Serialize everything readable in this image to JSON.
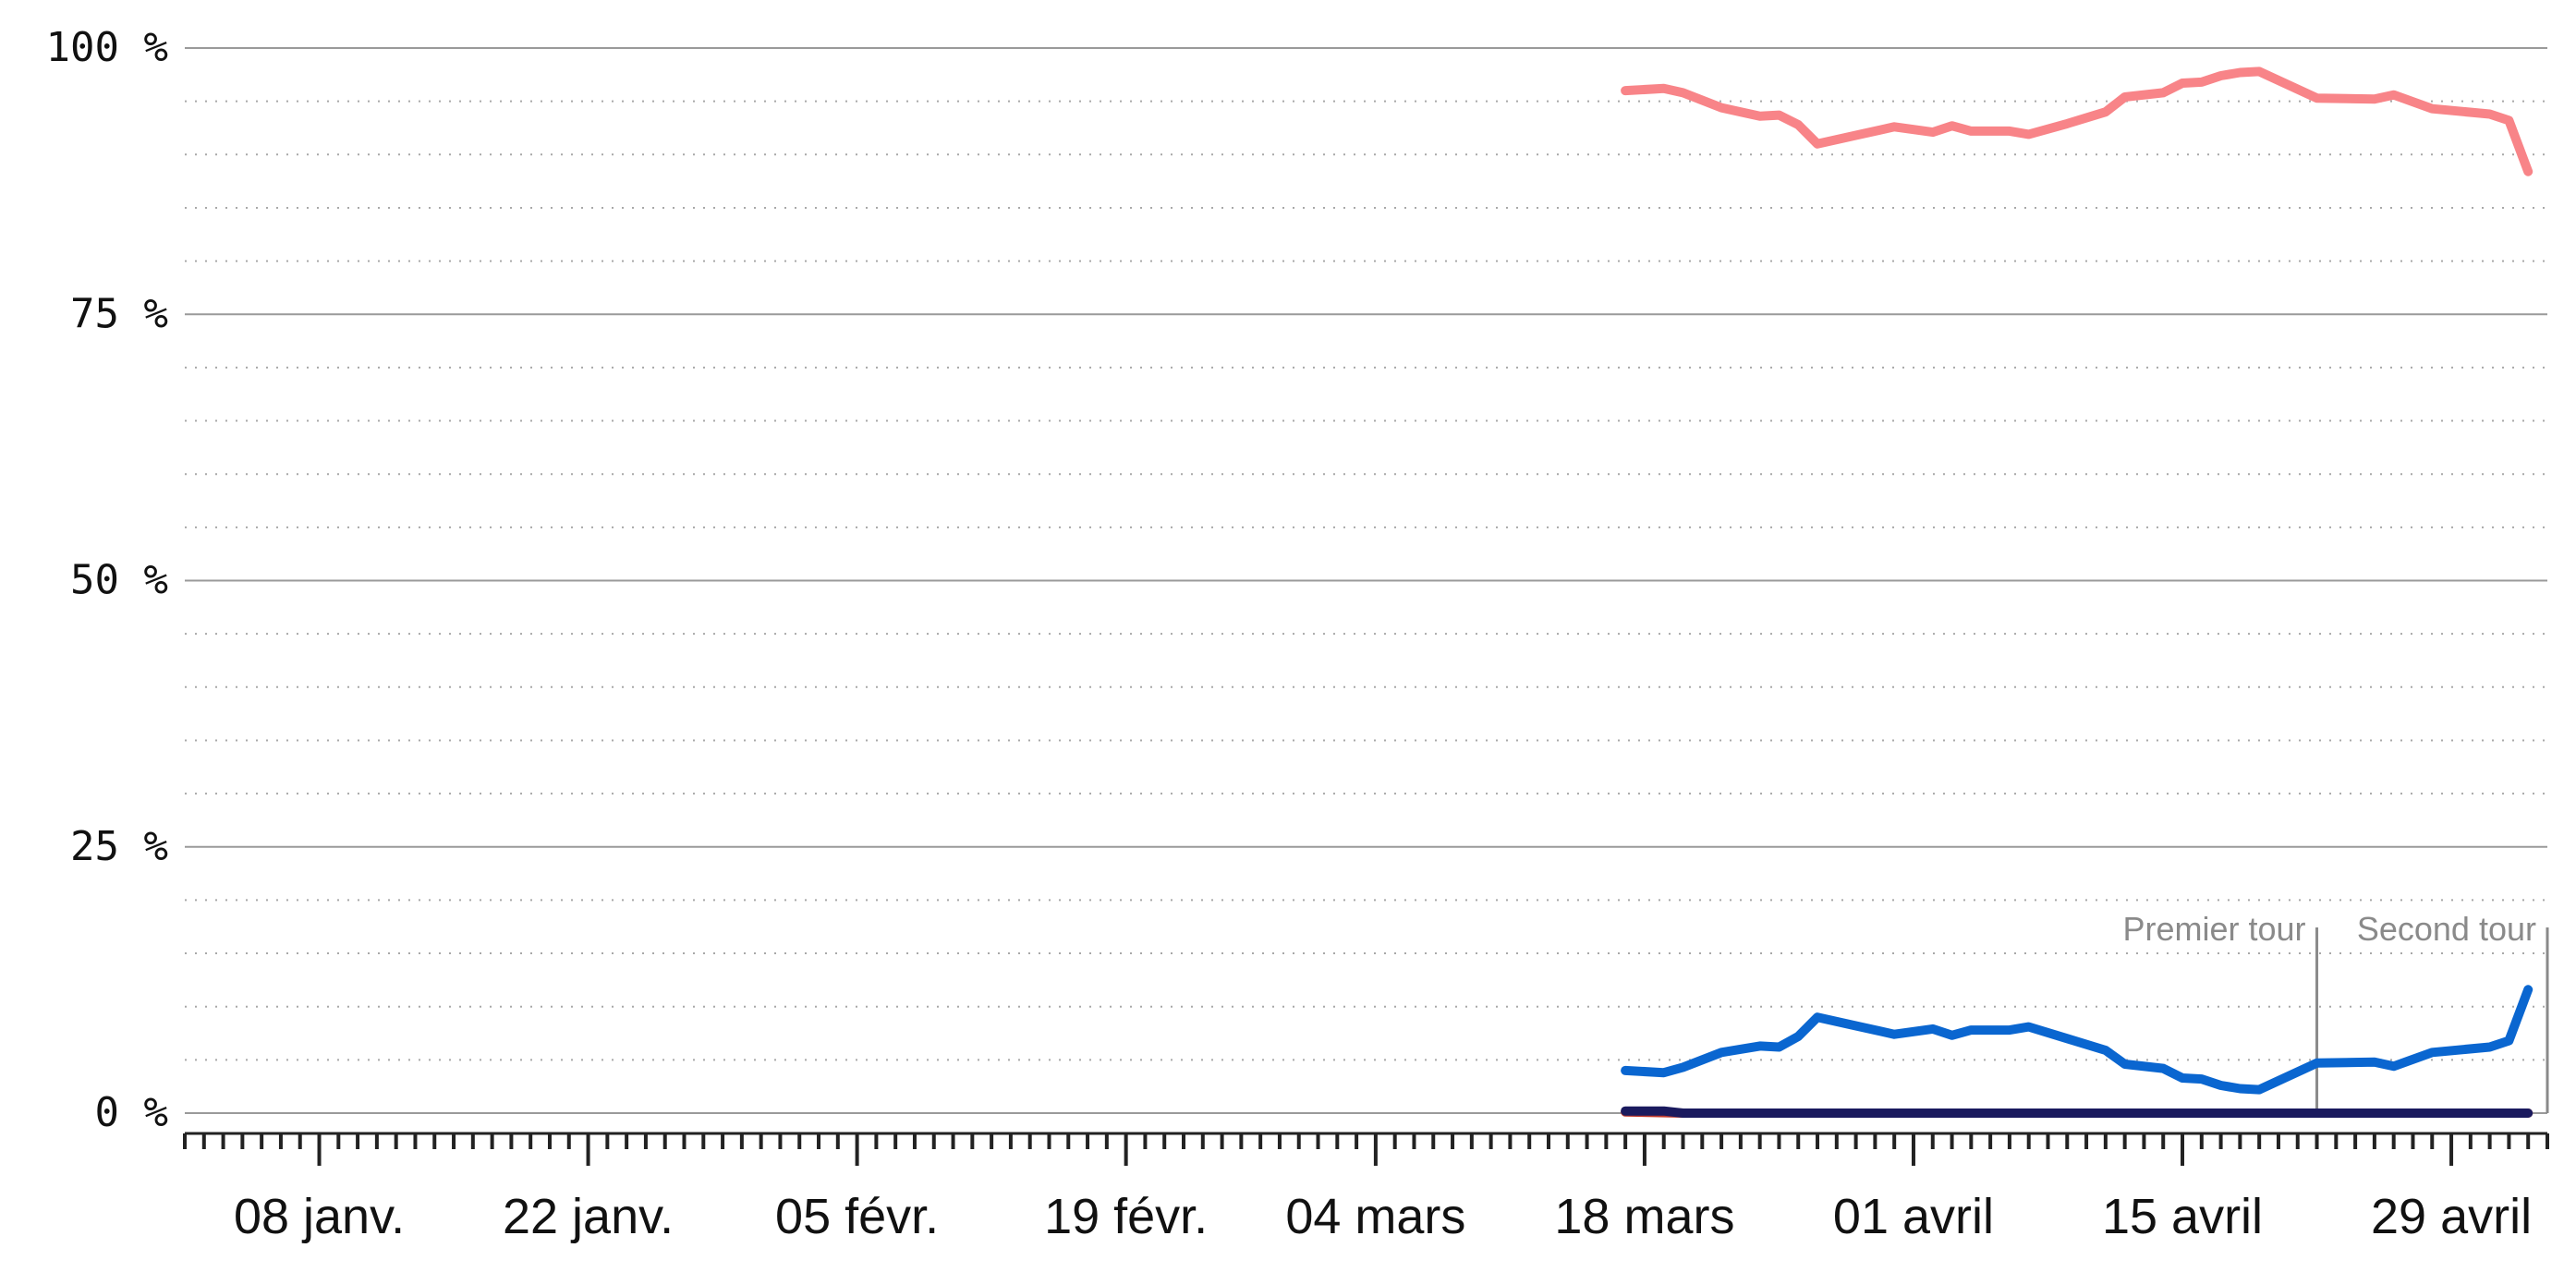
{
  "chart_data": {
    "type": "line",
    "title": "",
    "xlabel": "",
    "ylabel": "",
    "xlim": [
      "2022-01-01",
      "2022-05-04"
    ],
    "ylim": [
      0,
      100
    ],
    "grid": true,
    "y_ticks": [
      {
        "value": 0,
        "label": "0 %"
      },
      {
        "value": 25,
        "label": "25 %"
      },
      {
        "value": 50,
        "label": "50 %"
      },
      {
        "value": 75,
        "label": "75 %"
      },
      {
        "value": 100,
        "label": "100 %"
      }
    ],
    "x_ticks": [
      {
        "date": "2022-01-08",
        "label": "08 janv."
      },
      {
        "date": "2022-01-22",
        "label": "22 janv."
      },
      {
        "date": "2022-02-05",
        "label": "05 févr."
      },
      {
        "date": "2022-02-19",
        "label": "19 févr."
      },
      {
        "date": "2022-03-04",
        "label": "04 mars"
      },
      {
        "date": "2022-03-18",
        "label": "18 mars"
      },
      {
        "date": "2022-04-01",
        "label": "01 avril"
      },
      {
        "date": "2022-04-15",
        "label": "15 avril"
      },
      {
        "date": "2022-04-29",
        "label": "29 avril"
      }
    ],
    "events": [
      {
        "date": "2022-04-22",
        "label": "Premier tour"
      },
      {
        "date": "2022-05-04",
        "label": "Second tour"
      }
    ],
    "series": [
      {
        "color": "#f88488",
        "points": [
          [
            "2022-03-17",
            96.0
          ],
          [
            "2022-03-19",
            96.2
          ],
          [
            "2022-03-20",
            95.8
          ],
          [
            "2022-03-22",
            94.4
          ],
          [
            "2022-03-24",
            93.6
          ],
          [
            "2022-03-25",
            93.7
          ],
          [
            "2022-03-26",
            92.8
          ],
          [
            "2022-03-27",
            91.0
          ],
          [
            "2022-03-29",
            91.8
          ],
          [
            "2022-03-31",
            92.6
          ],
          [
            "2022-04-02",
            92.1
          ],
          [
            "2022-04-03",
            92.7
          ],
          [
            "2022-04-04",
            92.2
          ],
          [
            "2022-04-06",
            92.2
          ],
          [
            "2022-04-07",
            91.9
          ],
          [
            "2022-04-09",
            92.9
          ],
          [
            "2022-04-11",
            94.0
          ],
          [
            "2022-04-12",
            95.4
          ],
          [
            "2022-04-14",
            95.8
          ],
          [
            "2022-04-15",
            96.7
          ],
          [
            "2022-04-16",
            96.8
          ],
          [
            "2022-04-17",
            97.4
          ],
          [
            "2022-04-18",
            97.7
          ],
          [
            "2022-04-19",
            97.8
          ],
          [
            "2022-04-22",
            95.3
          ],
          [
            "2022-04-25",
            95.2
          ],
          [
            "2022-04-26",
            95.6
          ],
          [
            "2022-04-28",
            94.3
          ],
          [
            "2022-05-01",
            93.8
          ],
          [
            "2022-05-02",
            93.2
          ],
          [
            "2022-05-03",
            88.4
          ]
        ]
      },
      {
        "color": "#0a66d0",
        "points": [
          [
            "2022-03-17",
            4.0
          ],
          [
            "2022-03-19",
            3.8
          ],
          [
            "2022-03-20",
            4.3
          ],
          [
            "2022-03-22",
            5.7
          ],
          [
            "2022-03-24",
            6.3
          ],
          [
            "2022-03-25",
            6.2
          ],
          [
            "2022-03-26",
            7.2
          ],
          [
            "2022-03-27",
            9.0
          ],
          [
            "2022-03-29",
            8.2
          ],
          [
            "2022-03-31",
            7.4
          ],
          [
            "2022-04-02",
            7.9
          ],
          [
            "2022-04-03",
            7.3
          ],
          [
            "2022-04-04",
            7.8
          ],
          [
            "2022-04-06",
            7.8
          ],
          [
            "2022-04-07",
            8.1
          ],
          [
            "2022-04-09",
            7.0
          ],
          [
            "2022-04-11",
            5.9
          ],
          [
            "2022-04-12",
            4.6
          ],
          [
            "2022-04-14",
            4.2
          ],
          [
            "2022-04-15",
            3.3
          ],
          [
            "2022-04-16",
            3.2
          ],
          [
            "2022-04-17",
            2.6
          ],
          [
            "2022-04-18",
            2.3
          ],
          [
            "2022-04-19",
            2.2
          ],
          [
            "2022-04-22",
            4.7
          ],
          [
            "2022-04-25",
            4.8
          ],
          [
            "2022-04-26",
            4.4
          ],
          [
            "2022-04-28",
            5.7
          ],
          [
            "2022-05-01",
            6.2
          ],
          [
            "2022-05-02",
            6.8
          ],
          [
            "2022-05-03",
            11.6
          ]
        ]
      },
      {
        "color": "#c0392b",
        "points": [
          [
            "2022-03-17",
            0.1
          ],
          [
            "2022-03-20",
            0.0
          ],
          [
            "2022-05-03",
            0.0
          ]
        ]
      },
      {
        "color": "#1a1a5e",
        "points": [
          [
            "2022-03-17",
            0.2
          ],
          [
            "2022-03-19",
            0.2
          ],
          [
            "2022-03-20",
            0.0
          ],
          [
            "2022-05-03",
            0.0
          ]
        ]
      }
    ]
  }
}
